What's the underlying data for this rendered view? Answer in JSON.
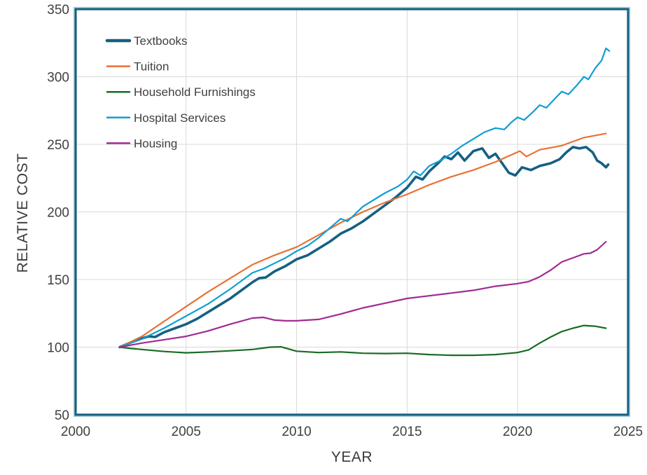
{
  "chart_data": {
    "type": "line",
    "title": "",
    "xlabel": "YEAR",
    "ylabel": "RELATIVE COST",
    "xlim": [
      2000,
      2025
    ],
    "ylim": [
      50,
      350
    ],
    "x_ticks": [
      2000,
      2005,
      2010,
      2015,
      2020,
      2025
    ],
    "y_ticks": [
      50,
      100,
      150,
      200,
      250,
      300,
      350
    ],
    "grid": true,
    "legend_position": "top-left-inside",
    "series": [
      {
        "name": "Textbooks",
        "color": "#156082",
        "thick": true,
        "points": [
          [
            2002,
            100
          ],
          [
            2002.5,
            103.5
          ],
          [
            2003,
            106.5
          ],
          [
            2003.3,
            108
          ],
          [
            2003.6,
            107.5
          ],
          [
            2004,
            111
          ],
          [
            2004.5,
            114
          ],
          [
            2005,
            117
          ],
          [
            2005.5,
            121
          ],
          [
            2006,
            126
          ],
          [
            2006.5,
            131
          ],
          [
            2007,
            136
          ],
          [
            2007.5,
            142
          ],
          [
            2008,
            148
          ],
          [
            2008.3,
            151
          ],
          [
            2008.6,
            151.5
          ],
          [
            2009,
            156
          ],
          [
            2009.5,
            160
          ],
          [
            2010,
            165
          ],
          [
            2010.5,
            168
          ],
          [
            2011,
            173
          ],
          [
            2011.5,
            178
          ],
          [
            2012,
            184
          ],
          [
            2012.5,
            188
          ],
          [
            2013,
            193
          ],
          [
            2013.5,
            199
          ],
          [
            2014,
            205
          ],
          [
            2014.5,
            211
          ],
          [
            2015,
            218
          ],
          [
            2015.4,
            226
          ],
          [
            2015.7,
            224
          ],
          [
            2016,
            230
          ],
          [
            2016.4,
            236
          ],
          [
            2016.7,
            241
          ],
          [
            2017,
            239
          ],
          [
            2017.3,
            244
          ],
          [
            2017.6,
            238
          ],
          [
            2018,
            245
          ],
          [
            2018.4,
            247
          ],
          [
            2018.7,
            240
          ],
          [
            2019,
            243
          ],
          [
            2019.3,
            236
          ],
          [
            2019.6,
            229
          ],
          [
            2019.9,
            227
          ],
          [
            2020.2,
            233
          ],
          [
            2020.6,
            231
          ],
          [
            2021,
            234
          ],
          [
            2021.5,
            236
          ],
          [
            2021.9,
            239
          ],
          [
            2022.2,
            244
          ],
          [
            2022.5,
            248
          ],
          [
            2022.8,
            247
          ],
          [
            2023.1,
            248
          ],
          [
            2023.4,
            244
          ],
          [
            2023.6,
            238
          ],
          [
            2023.8,
            236
          ],
          [
            2024,
            233
          ],
          [
            2024.1,
            235
          ]
        ]
      },
      {
        "name": "Tuition",
        "color": "#E97132",
        "thick": false,
        "points": [
          [
            2002,
            100
          ],
          [
            2003,
            108
          ],
          [
            2004,
            119
          ],
          [
            2005,
            130
          ],
          [
            2006,
            141
          ],
          [
            2007,
            151
          ],
          [
            2008,
            161
          ],
          [
            2009,
            168
          ],
          [
            2010,
            174
          ],
          [
            2011,
            183
          ],
          [
            2012,
            192
          ],
          [
            2013,
            200
          ],
          [
            2014,
            207
          ],
          [
            2015,
            213
          ],
          [
            2016,
            220
          ],
          [
            2017,
            226
          ],
          [
            2018,
            231
          ],
          [
            2019,
            237
          ],
          [
            2020.1,
            245
          ],
          [
            2020.4,
            241
          ],
          [
            2021,
            246
          ],
          [
            2022,
            249
          ],
          [
            2023,
            255
          ],
          [
            2024,
            258
          ]
        ]
      },
      {
        "name": "Household Furnishings",
        "color": "#196B24",
        "thick": false,
        "points": [
          [
            2002,
            100
          ],
          [
            2002.5,
            99
          ],
          [
            2003,
            98.3
          ],
          [
            2004,
            96.8
          ],
          [
            2005,
            95.8
          ],
          [
            2006,
            96.5
          ],
          [
            2007,
            97.3
          ],
          [
            2008,
            98.3
          ],
          [
            2008.8,
            100
          ],
          [
            2009.3,
            100.2
          ],
          [
            2010,
            97
          ],
          [
            2011,
            96
          ],
          [
            2012,
            96.5
          ],
          [
            2013,
            95.5
          ],
          [
            2014,
            95.3
          ],
          [
            2015,
            95.5
          ],
          [
            2016,
            94.5
          ],
          [
            2017,
            94
          ],
          [
            2018,
            94
          ],
          [
            2019,
            94.5
          ],
          [
            2020,
            96
          ],
          [
            2020.5,
            98
          ],
          [
            2021,
            103
          ],
          [
            2021.5,
            107.5
          ],
          [
            2022,
            111.5
          ],
          [
            2022.5,
            114
          ],
          [
            2023,
            116
          ],
          [
            2023.5,
            115.5
          ],
          [
            2024,
            114
          ]
        ]
      },
      {
        "name": "Hospital Services",
        "color": "#0F9ED5",
        "thick": false,
        "points": [
          [
            2002,
            100
          ],
          [
            2003,
            106
          ],
          [
            2004,
            114
          ],
          [
            2005,
            123
          ],
          [
            2006,
            132
          ],
          [
            2007,
            143
          ],
          [
            2008,
            155
          ],
          [
            2008.5,
            158
          ],
          [
            2009,
            162
          ],
          [
            2009.5,
            166
          ],
          [
            2010,
            171
          ],
          [
            2010.5,
            175
          ],
          [
            2011,
            181
          ],
          [
            2011.5,
            188
          ],
          [
            2012,
            195
          ],
          [
            2012.3,
            193
          ],
          [
            2013,
            204
          ],
          [
            2014,
            214
          ],
          [
            2014.6,
            219
          ],
          [
            2015,
            224
          ],
          [
            2015.3,
            230
          ],
          [
            2015.6,
            227
          ],
          [
            2016,
            234
          ],
          [
            2016.5,
            238
          ],
          [
            2017,
            243
          ],
          [
            2017.5,
            249
          ],
          [
            2018,
            254
          ],
          [
            2018.5,
            259
          ],
          [
            2019,
            262
          ],
          [
            2019.4,
            261
          ],
          [
            2019.7,
            266
          ],
          [
            2020,
            270
          ],
          [
            2020.3,
            268
          ],
          [
            2020.7,
            274
          ],
          [
            2021,
            279
          ],
          [
            2021.3,
            277
          ],
          [
            2021.7,
            284
          ],
          [
            2022,
            289
          ],
          [
            2022.3,
            287
          ],
          [
            2022.7,
            294
          ],
          [
            2023,
            300
          ],
          [
            2023.2,
            298
          ],
          [
            2023.5,
            306
          ],
          [
            2023.8,
            312
          ],
          [
            2024,
            321
          ],
          [
            2024.15,
            319
          ]
        ]
      },
      {
        "name": "Housing",
        "color": "#A02B93",
        "thick": false,
        "points": [
          [
            2002,
            100
          ],
          [
            2003,
            103
          ],
          [
            2004,
            105.5
          ],
          [
            2005,
            108
          ],
          [
            2006,
            112
          ],
          [
            2007,
            117
          ],
          [
            2008,
            121.5
          ],
          [
            2008.5,
            122
          ],
          [
            2009,
            120
          ],
          [
            2009.5,
            119.5
          ],
          [
            2010,
            119.5
          ],
          [
            2011,
            120.5
          ],
          [
            2012,
            124.5
          ],
          [
            2013,
            129
          ],
          [
            2014,
            132.5
          ],
          [
            2015,
            136
          ],
          [
            2016,
            138
          ],
          [
            2017,
            140
          ],
          [
            2018,
            142
          ],
          [
            2019,
            145
          ],
          [
            2020,
            147
          ],
          [
            2020.5,
            148.5
          ],
          [
            2021,
            152
          ],
          [
            2021.5,
            157
          ],
          [
            2022,
            163
          ],
          [
            2022.5,
            166
          ],
          [
            2023,
            169
          ],
          [
            2023.3,
            169.5
          ],
          [
            2023.6,
            172
          ],
          [
            2024,
            178
          ]
        ]
      }
    ],
    "colors": {
      "plot_border": "#156082",
      "plot_border_glow": "#aecfdb",
      "gridline": "#d9d9d9",
      "tick_text": "#404040",
      "legend_text": "#404040",
      "axis_title_text": "#3a3a3a",
      "background": "#ffffff"
    }
  }
}
